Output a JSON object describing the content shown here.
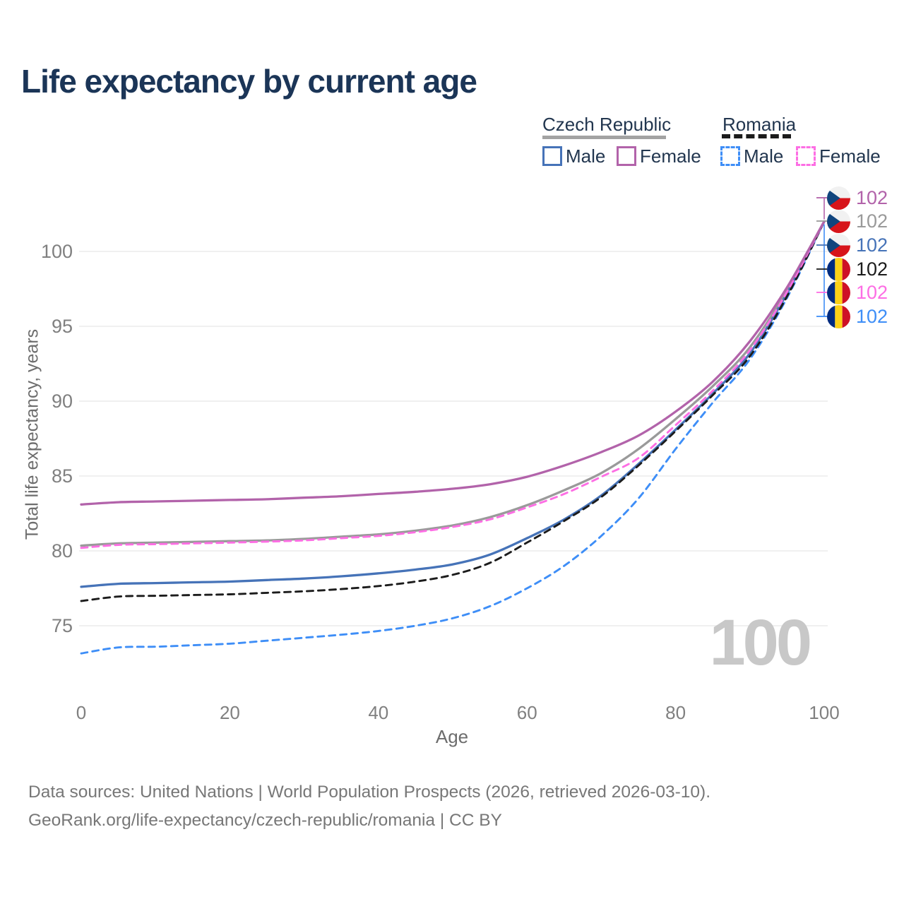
{
  "title": "Life expectancy by current age",
  "legend": {
    "czech": {
      "label": "Czech Republic",
      "male": "Male",
      "female": "Female"
    },
    "romania": {
      "label": "Romania",
      "male": "Male",
      "female": "Female"
    }
  },
  "axes": {
    "x": {
      "title": "Age",
      "ticks": [
        0,
        20,
        40,
        60,
        80,
        100
      ]
    },
    "y": {
      "title": "Total life expectancy, years",
      "ticks": [
        75,
        80,
        85,
        90,
        95,
        100
      ]
    }
  },
  "right_labels": [
    {
      "series": "Czech Republic (Female)",
      "flag": "czech-flag-icon",
      "value": "102",
      "color": "#b263aa"
    },
    {
      "series": "Czech Republic (All)",
      "flag": "czech-flag-icon",
      "value": "102",
      "color": "#9a9a9a"
    },
    {
      "series": "Czech Republic (Male)",
      "flag": "czech-flag-icon",
      "value": "102",
      "color": "#4673b8"
    },
    {
      "series": "Romania (All)",
      "flag": "romania-flag-icon",
      "value": "102",
      "color": "#1c1c1c"
    },
    {
      "series": "Romania (Female)",
      "flag": "romania-flag-icon",
      "value": "102",
      "color": "#fd6ee4"
    },
    {
      "series": "Romania (Male)",
      "flag": "romania-flag-icon",
      "value": "102",
      "color": "#3e8ef7"
    }
  ],
  "watermark_age": "100",
  "footer": {
    "line1": "Data sources: United Nations | World Population Prospects (2026, retrieved 2026-03-10).",
    "line2": "GeoRank.org/life-expectancy/czech-republic/romania | CC BY"
  },
  "colors": {
    "title_text": "#1b3557",
    "axis_text": "#808080",
    "grid": "#ececec",
    "watermark": "#c8c8c8",
    "czech_male": "#4673b8",
    "czech_female": "#b263aa",
    "czech_all": "#9a9a9a",
    "romania_male": "#3e8ef7",
    "romania_female": "#fd6ee4",
    "romania_all": "#1c1c1c"
  },
  "chart_data": {
    "type": "line",
    "title": "Life expectancy by current age",
    "xlabel": "Age",
    "ylabel": "Total life expectancy, years",
    "xlim": [
      0,
      100
    ],
    "ylim": [
      72.5,
      103
    ],
    "grid": true,
    "legend_position": "top-right",
    "x": [
      0,
      5,
      10,
      15,
      20,
      25,
      30,
      35,
      40,
      45,
      50,
      55,
      60,
      65,
      70,
      75,
      80,
      85,
      90,
      95,
      100
    ],
    "series": [
      {
        "name": "Czech Republic (All)",
        "color": "#9a9a9a",
        "dashed": false,
        "values": [
          80.35,
          80.5,
          80.55,
          80.6,
          80.65,
          80.7,
          80.8,
          80.95,
          81.1,
          81.35,
          81.7,
          82.25,
          83.05,
          84.05,
          85.2,
          86.8,
          88.8,
          91.0,
          93.6,
          97.4,
          102
        ]
      },
      {
        "name": "Czech Republic (Male)",
        "color": "#4673b8",
        "dashed": false,
        "values": [
          77.6,
          77.8,
          77.85,
          77.9,
          77.95,
          78.05,
          78.15,
          78.3,
          78.5,
          78.75,
          79.1,
          79.75,
          80.85,
          82.1,
          83.7,
          85.8,
          88.1,
          90.5,
          93.2,
          97.2,
          102
        ]
      },
      {
        "name": "Romania (Male)",
        "color": "#3e8ef7",
        "dashed": true,
        "values": [
          73.15,
          73.55,
          73.6,
          73.7,
          73.8,
          74.0,
          74.2,
          74.4,
          74.65,
          75.0,
          75.5,
          76.3,
          77.5,
          79.0,
          81.0,
          83.5,
          86.8,
          89.9,
          92.8,
          96.9,
          102
        ]
      },
      {
        "name": "Romania (All)",
        "color": "#1c1c1c",
        "dashed": true,
        "values": [
          76.65,
          76.95,
          77.0,
          77.05,
          77.1,
          77.2,
          77.3,
          77.45,
          77.65,
          77.95,
          78.4,
          79.2,
          80.55,
          82.0,
          83.6,
          85.7,
          88.0,
          90.4,
          93.0,
          97.0,
          102
        ]
      },
      {
        "name": "Romania (Female)",
        "color": "#fd6ee4",
        "dashed": true,
        "values": [
          80.2,
          80.4,
          80.45,
          80.5,
          80.55,
          80.62,
          80.7,
          80.85,
          81.0,
          81.25,
          81.6,
          82.1,
          82.9,
          83.8,
          84.95,
          86.2,
          88.4,
          90.7,
          93.4,
          97.3,
          102
        ]
      },
      {
        "name": "Czech Republic (Female)",
        "color": "#b263aa",
        "dashed": false,
        "values": [
          83.1,
          83.25,
          83.3,
          83.35,
          83.4,
          83.45,
          83.55,
          83.65,
          83.8,
          83.95,
          84.15,
          84.45,
          84.95,
          85.7,
          86.6,
          87.7,
          89.3,
          91.3,
          94.0,
          97.6,
          102
        ]
      }
    ],
    "end_value_labels": [
      "102",
      "102",
      "102",
      "102",
      "102",
      "102"
    ]
  }
}
